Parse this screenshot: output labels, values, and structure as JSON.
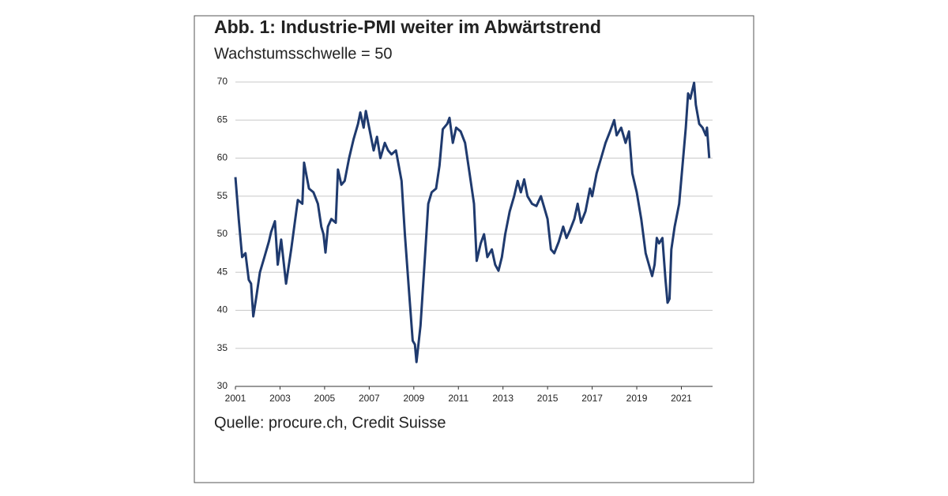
{
  "chart_data": {
    "type": "line",
    "title": "Abb. 1: Industrie-PMI weiter im Abwärtstrend",
    "subtitle": "Wachstumsschwelle = 50",
    "source": "Quelle: procure.ch, Credit Suisse",
    "x": [
      2001.0,
      2001.15,
      2001.3,
      2001.45,
      2001.6,
      2001.7,
      2001.8,
      2001.95,
      2002.1,
      2002.3,
      2002.5,
      2002.6,
      2002.77,
      2002.9,
      2003.05,
      2003.27,
      2003.5,
      2003.8,
      2004.0,
      2004.08,
      2004.3,
      2004.5,
      2004.7,
      2004.85,
      2004.95,
      2005.04,
      2005.15,
      2005.3,
      2005.5,
      2005.6,
      2005.75,
      2005.9,
      2006.1,
      2006.3,
      2006.5,
      2006.6,
      2006.75,
      2006.85,
      2007.0,
      2007.2,
      2007.35,
      2007.5,
      2007.7,
      2007.85,
      2008.0,
      2008.2,
      2008.45,
      2008.6,
      2008.8,
      2008.95,
      2009.05,
      2009.12,
      2009.3,
      2009.5,
      2009.65,
      2009.8,
      2010.0,
      2010.15,
      2010.3,
      2010.5,
      2010.6,
      2010.75,
      2010.9,
      2011.1,
      2011.3,
      2011.5,
      2011.7,
      2011.82,
      2012.0,
      2012.15,
      2012.3,
      2012.5,
      2012.65,
      2012.8,
      2012.95,
      2013.1,
      2013.3,
      2013.5,
      2013.66,
      2013.8,
      2013.95,
      2014.1,
      2014.3,
      2014.5,
      2014.7,
      2014.85,
      2015.0,
      2015.15,
      2015.3,
      2015.5,
      2015.7,
      2015.85,
      2016.0,
      2016.2,
      2016.35,
      2016.5,
      2016.7,
      2016.9,
      2017.0,
      2017.2,
      2017.4,
      2017.6,
      2017.8,
      2017.99,
      2018.1,
      2018.3,
      2018.5,
      2018.65,
      2018.8,
      2019.0,
      2019.2,
      2019.4,
      2019.69,
      2019.8,
      2019.9,
      2020.0,
      2020.15,
      2020.29,
      2020.38,
      2020.47,
      2020.55,
      2020.7,
      2020.9,
      2021.05,
      2021.2,
      2021.3,
      2021.4,
      2021.57,
      2021.65,
      2021.8,
      2021.95,
      2022.1,
      2022.15,
      2022.25
    ],
    "series": [
      {
        "name": "PMI",
        "color": "#1f3a6e",
        "values": [
          57.5,
          52,
          47,
          47.5,
          44,
          43.5,
          39.2,
          42,
          45,
          47,
          49,
          50.3,
          51.7,
          46,
          49.3,
          43.5,
          48,
          54.5,
          54,
          59.4,
          56,
          55.5,
          54,
          51,
          50,
          47.6,
          51,
          52,
          51.5,
          58.5,
          56.5,
          57,
          60,
          62.5,
          64.5,
          66,
          64,
          66.2,
          64,
          61,
          62.8,
          60,
          62,
          61,
          60.5,
          61,
          57,
          50,
          42,
          36,
          35.5,
          33.2,
          38,
          47,
          54,
          55.5,
          56,
          59,
          63.8,
          64.5,
          65.3,
          62,
          64,
          63.5,
          62,
          58,
          54,
          46.5,
          48.8,
          50,
          47,
          48,
          46,
          45.2,
          47,
          50,
          53,
          55,
          57,
          55.5,
          57.2,
          55,
          54,
          53.7,
          55,
          53.5,
          52,
          48,
          47.5,
          49,
          51,
          49.5,
          50.5,
          52,
          54,
          51.5,
          53,
          56,
          55,
          58,
          60,
          62,
          63.5,
          65,
          63,
          64,
          62,
          63.5,
          58,
          55.5,
          52,
          47.5,
          44.5,
          46,
          49.5,
          48.8,
          49.5,
          44,
          41,
          41.5,
          48,
          51,
          54,
          59,
          64,
          68.5,
          67.8,
          69.9,
          67,
          64.5,
          64,
          63,
          64,
          60
        ]
      }
    ],
    "xlim": [
      2001,
      2022.4
    ],
    "xticks": [
      2001,
      2003,
      2005,
      2007,
      2009,
      2011,
      2013,
      2015,
      2017,
      2019,
      2021
    ],
    "ylim": [
      30,
      70
    ],
    "yticks": [
      30,
      35,
      40,
      45,
      50,
      55,
      60,
      65,
      70
    ],
    "grid": true
  }
}
